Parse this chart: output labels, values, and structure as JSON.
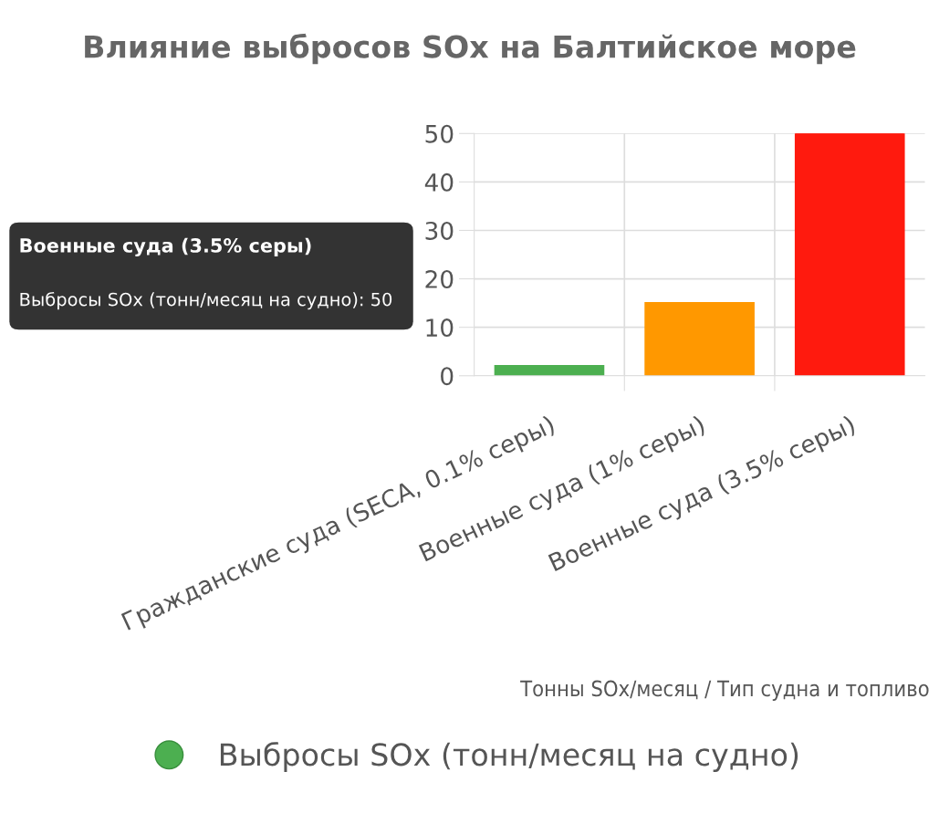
{
  "chart_data": {
    "type": "bar",
    "title": "Влияние выбросов SOx на Балтийское море",
    "categories": [
      "Гражданские суда (SECA, 0.1% серы)",
      "Военные суда (1% серы)",
      "Военные суда (3.5% серы)"
    ],
    "series": [
      {
        "name": "Выбросы SOx (тонн/месяц на судно)",
        "color": "#4caf50",
        "colors": [
          "#4caf50",
          "#ff9800",
          "#ff1a0e"
        ],
        "values": [
          2,
          15,
          50
        ]
      }
    ],
    "xlabel": "Тонны SOx/месяц / Тип судна и топливо",
    "ylim": [
      0,
      50
    ],
    "yticks": [
      0,
      10,
      20,
      30,
      40,
      50
    ],
    "grid": true,
    "legend": "bottom",
    "annotations": [
      "Военные суда (3.5% серы)",
      "Выбросы SOx (тонн/месяц на судно): 50"
    ]
  }
}
